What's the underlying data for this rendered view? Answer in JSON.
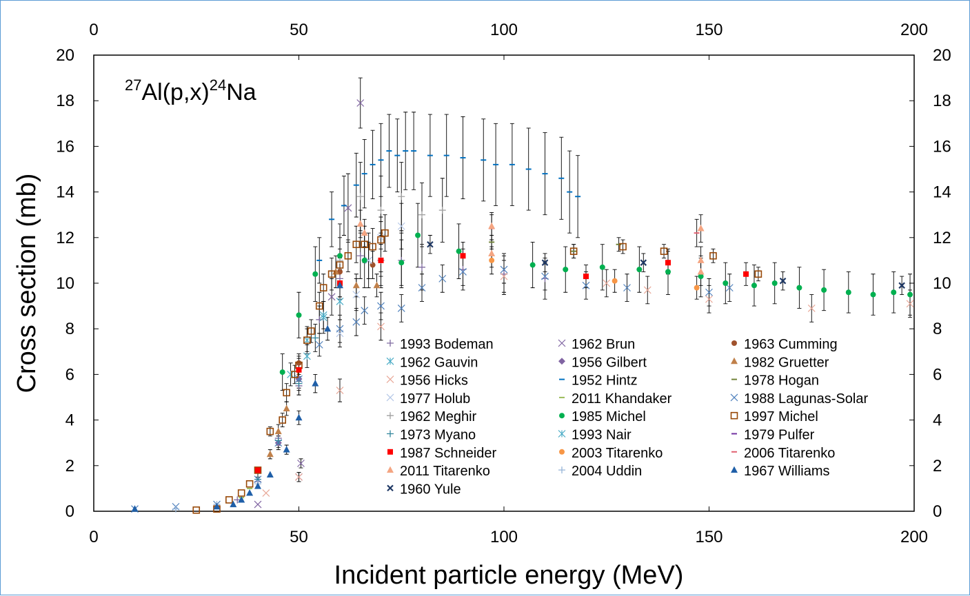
{
  "chart_data": {
    "type": "scatter",
    "annotation": {
      "pre": "27",
      "target": "Al(p,x)",
      "post": "24",
      "product": "Na"
    },
    "xlabel": "Incident particle energy (MeV)",
    "ylabel": "Cross section (mb)",
    "xlim": [
      0,
      200
    ],
    "ylim": [
      0,
      20
    ],
    "x_ticks": [
      "0",
      "50",
      "100",
      "150",
      "200"
    ],
    "y_ticks": [
      "0",
      "2",
      "4",
      "6",
      "8",
      "10",
      "12",
      "14",
      "16",
      "18",
      "20"
    ],
    "grid": false,
    "legend_position": "lower-right inside plot",
    "series": [
      {
        "name": "1993 Bodeman",
        "marker": "plus",
        "color": "#7f6aa0",
        "points": [
          [
            35,
            0.5,
            0.05
          ],
          [
            40,
            1.3,
            0.1
          ],
          [
            45,
            3.2,
            0.2
          ],
          [
            50,
            5.5,
            0.4
          ],
          [
            55,
            8.4,
            0.6
          ],
          [
            60,
            10.2,
            0.8
          ],
          [
            65,
            11.2,
            1.0
          ],
          [
            70,
            11.0,
            1.2
          ],
          [
            75,
            11.0,
            1.2
          ],
          [
            80,
            10.7,
            1.0
          ],
          [
            90,
            10.6,
            0.9
          ],
          [
            100,
            10.4,
            0.9
          ],
          [
            110,
            10.2,
            0.9
          ]
        ]
      },
      {
        "name": "1962 Brun",
        "marker": "x",
        "color": "#8064a2",
        "points": [
          [
            40,
            0.3,
            0.1
          ],
          [
            50,
            1.5,
            0.2
          ],
          [
            50.5,
            2.1,
            0.2
          ],
          [
            58,
            9.4,
            0.8
          ],
          [
            62,
            13.3,
            1.5
          ],
          [
            65,
            17.9,
            1.1
          ],
          [
            67,
            11.0,
            1.2
          ]
        ]
      },
      {
        "name": "1963 Cumming",
        "marker": "circle",
        "color": "#a0522d",
        "points": [
          [
            50,
            6.5,
            0.4
          ],
          [
            60,
            10.5,
            0.6
          ],
          [
            68,
            10.8,
            0.6
          ]
        ]
      },
      {
        "name": "1962 Gauvin",
        "marker": "asterisk",
        "color": "#4bacc6",
        "points": [
          [
            48,
            6.0,
            0.5
          ],
          [
            52,
            7.5,
            0.6
          ],
          [
            56,
            8.5,
            0.7
          ],
          [
            60,
            9.2,
            0.8
          ]
        ]
      },
      {
        "name": "1956 Gilbert",
        "marker": "diamond",
        "color": "#8064a2",
        "points": [
          [
            45,
            3.0,
            0.3
          ],
          [
            50,
            5.8,
            0.5
          ]
        ]
      },
      {
        "name": "1982 Gruetter",
        "marker": "triangle",
        "color": "#c0804a",
        "points": [
          [
            43,
            2.5,
            0.2
          ],
          [
            45,
            3.5,
            0.3
          ],
          [
            47,
            4.5,
            0.3
          ],
          [
            59,
            10.5,
            0.7
          ],
          [
            64,
            9.9,
            0.5
          ],
          [
            69,
            9.9,
            0.5
          ]
        ]
      },
      {
        "name": "1956 Hicks",
        "marker": "x",
        "color": "#e8a898",
        "points": [
          [
            42,
            0.8,
            0.1
          ],
          [
            50,
            1.5,
            0.2
          ],
          [
            60,
            5.3,
            0.5
          ],
          [
            70,
            8.1,
            0.6
          ],
          [
            100,
            10.3,
            0.7
          ],
          [
            125,
            10.0,
            0.6
          ],
          [
            135,
            9.7,
            0.6
          ],
          [
            150,
            9.3,
            0.6
          ],
          [
            175,
            8.9,
            0.6
          ],
          [
            199,
            9.1,
            0.6
          ]
        ]
      },
      {
        "name": "1952 Hintz",
        "marker": "dash",
        "color": "#0070c0",
        "points": [
          [
            55,
            11.0,
            1.0
          ],
          [
            58,
            12.8,
            1.2
          ],
          [
            61,
            13.4,
            1.3
          ],
          [
            64,
            14.3,
            1.4
          ],
          [
            66,
            14.8,
            1.5
          ],
          [
            68,
            15.2,
            1.5
          ],
          [
            70,
            15.4,
            1.6
          ],
          [
            72,
            15.8,
            1.6
          ],
          [
            74,
            15.6,
            1.6
          ],
          [
            76,
            15.8,
            1.7
          ],
          [
            78,
            15.8,
            1.7
          ],
          [
            82,
            15.6,
            1.8
          ],
          [
            86,
            15.6,
            1.8
          ],
          [
            90,
            15.5,
            1.8
          ],
          [
            95,
            15.4,
            1.8
          ],
          [
            98,
            15.2,
            1.8
          ],
          [
            102,
            15.2,
            1.8
          ],
          [
            106,
            15.0,
            1.8
          ],
          [
            110,
            14.8,
            1.8
          ],
          [
            114,
            14.6,
            1.8
          ],
          [
            116,
            14.0,
            1.8
          ],
          [
            118,
            13.8,
            1.8
          ]
        ]
      },
      {
        "name": "1978 Hogan",
        "marker": "dash",
        "color": "#708238",
        "points": [
          [
            97,
            11.8,
            0.3
          ],
          [
            117,
            11.4,
            0.3
          ],
          [
            128,
            11.7,
            0.3
          ]
        ]
      },
      {
        "name": "1977 Holub",
        "marker": "x",
        "color": "#b4c7e7",
        "points": [
          [
            60,
            7.8,
            0.6
          ],
          [
            64,
            9.5,
            0.7
          ],
          [
            67,
            11.0,
            0.8
          ],
          [
            70,
            12.0,
            0.9
          ],
          [
            75,
            12.5,
            1.0
          ]
        ]
      },
      {
        "name": "2011 Khandaker",
        "marker": "dash",
        "color": "#9bbb59",
        "points": [
          [
            36,
            0.6,
            0.1
          ],
          [
            38,
            1.0,
            0.1
          ],
          [
            40,
            1.7,
            0.2
          ]
        ]
      },
      {
        "name": "1988 Lagunas-Solar",
        "marker": "x",
        "color": "#4f81bd",
        "points": [
          [
            10,
            0.1,
            0.05
          ],
          [
            20,
            0.2,
            0.05
          ],
          [
            30,
            0.3,
            0.05
          ],
          [
            40,
            1.4,
            0.1
          ],
          [
            45,
            3.0,
            0.2
          ],
          [
            50,
            5.8,
            0.4
          ],
          [
            55,
            7.3,
            0.5
          ],
          [
            60,
            8.0,
            0.6
          ],
          [
            64,
            8.3,
            0.6
          ],
          [
            66,
            8.8,
            0.6
          ],
          [
            70,
            9.0,
            0.6
          ],
          [
            75,
            8.9,
            0.6
          ],
          [
            80,
            9.8,
            0.6
          ],
          [
            85,
            10.2,
            0.6
          ],
          [
            90,
            10.5,
            0.6
          ],
          [
            100,
            10.6,
            0.6
          ],
          [
            110,
            10.3,
            0.6
          ],
          [
            120,
            9.9,
            0.6
          ],
          [
            130,
            9.8,
            0.6
          ],
          [
            150,
            9.6,
            0.6
          ],
          [
            155,
            9.8,
            0.6
          ]
        ]
      },
      {
        "name": "1962 Meghir",
        "marker": "plus",
        "color": "#a0a0a0",
        "points": [
          [
            60,
            11.0,
            1.0
          ],
          [
            65,
            13.8,
            1.5
          ],
          [
            70,
            13.2,
            1.5
          ],
          [
            75,
            13.8,
            1.5
          ],
          [
            80,
            13.0,
            1.4
          ],
          [
            85,
            13.2,
            1.4
          ]
        ]
      },
      {
        "name": "1985 Michel",
        "marker": "circle",
        "color": "#00b050",
        "points": [
          [
            46,
            6.1,
            0.8
          ],
          [
            50,
            8.6,
            1.0
          ],
          [
            54,
            10.4,
            1.2
          ],
          [
            60,
            11.2,
            1.4
          ],
          [
            66,
            11.0,
            1.2
          ],
          [
            70,
            11.0,
            1.1
          ],
          [
            75,
            10.9,
            1.0
          ],
          [
            79,
            12.1,
            1.4
          ],
          [
            89,
            11.4,
            1.2
          ],
          [
            107,
            10.8,
            1.0
          ],
          [
            115,
            10.6,
            1.0
          ],
          [
            124,
            10.7,
            1.0
          ],
          [
            133,
            10.6,
            1.0
          ],
          [
            140,
            10.5,
            1.0
          ],
          [
            148,
            10.3,
            0.9
          ],
          [
            154,
            10.0,
            0.9
          ],
          [
            161,
            9.9,
            0.9
          ],
          [
            166,
            10.0,
            0.9
          ],
          [
            172,
            9.8,
            0.9
          ],
          [
            178,
            9.7,
            0.9
          ],
          [
            184,
            9.6,
            0.9
          ],
          [
            190,
            9.5,
            0.9
          ],
          [
            195,
            9.6,
            0.9
          ],
          [
            199,
            9.5,
            0.9
          ]
        ]
      },
      {
        "name": "1997 Michel",
        "marker": "square-open",
        "color": "#984807",
        "points": [
          [
            25,
            0.05,
            0.05
          ],
          [
            30,
            0.1,
            0.05
          ],
          [
            33,
            0.5,
            0.05
          ],
          [
            36,
            0.8,
            0.1
          ],
          [
            38,
            1.2,
            0.1
          ],
          [
            40,
            1.8,
            0.1
          ],
          [
            43,
            3.5,
            0.2
          ],
          [
            46,
            4.0,
            0.3
          ],
          [
            47,
            5.2,
            0.4
          ],
          [
            49,
            6.0,
            0.4
          ],
          [
            50,
            6.4,
            0.4
          ],
          [
            52,
            7.5,
            0.5
          ],
          [
            53,
            7.9,
            0.5
          ],
          [
            55,
            9.0,
            0.6
          ],
          [
            56,
            9.8,
            0.6
          ],
          [
            58,
            10.4,
            0.7
          ],
          [
            60,
            10.8,
            0.7
          ],
          [
            62,
            11.2,
            0.7
          ],
          [
            64,
            11.7,
            0.8
          ],
          [
            66,
            11.7,
            0.8
          ],
          [
            68,
            11.6,
            0.8
          ],
          [
            70,
            11.9,
            0.8
          ],
          [
            71,
            12.2,
            0.8
          ],
          [
            117,
            11.4,
            0.3
          ],
          [
            129,
            11.6,
            0.3
          ],
          [
            139,
            11.4,
            0.3
          ],
          [
            151,
            11.2,
            0.3
          ],
          [
            162,
            10.4,
            0.3
          ]
        ]
      },
      {
        "name": "1973 Myano",
        "marker": "plus",
        "color": "#31859c",
        "points": [
          [
            40,
            1.4,
            0.1
          ],
          [
            45,
            3.1,
            0.2
          ],
          [
            50,
            5.6,
            0.5
          ],
          [
            54,
            7.6,
            0.6
          ]
        ]
      },
      {
        "name": "1993 Nair",
        "marker": "asterisk",
        "color": "#4bacc6",
        "points": [
          [
            52,
            6.8,
            0.5
          ],
          [
            56,
            8.6,
            0.6
          ]
        ]
      },
      {
        "name": "1979 Pulfer",
        "marker": "dash",
        "color": "#7030a0",
        "points": [
          [
            70,
            11.0,
            0.5
          ]
        ]
      },
      {
        "name": "1987 Schneider",
        "marker": "square",
        "color": "#ff0000",
        "points": [
          [
            40,
            1.8,
            0.1
          ],
          [
            50,
            6.2,
            0.5
          ],
          [
            60,
            10.0,
            0.6
          ],
          [
            70,
            11.0,
            0.7
          ],
          [
            90,
            11.2,
            0.6
          ],
          [
            120,
            10.3,
            0.5
          ],
          [
            140,
            10.9,
            0.5
          ],
          [
            159,
            10.4,
            0.5
          ]
        ]
      },
      {
        "name": "2003 Titarenko",
        "marker": "circle",
        "color": "#f79646",
        "points": [
          [
            97,
            11.0,
            0.6
          ],
          [
            127,
            10.1,
            0.5
          ],
          [
            147,
            9.8,
            0.5
          ]
        ]
      },
      {
        "name": "2006 Titarenko",
        "marker": "dash",
        "color": "#e06070",
        "points": [
          [
            97,
            12.4,
            0.6
          ],
          [
            147,
            12.2,
            0.6
          ]
        ]
      },
      {
        "name": "2011 Titarenko",
        "marker": "triangle",
        "color": "#f4a582",
        "points": [
          [
            65,
            12.6,
            0.6
          ],
          [
            66,
            12.2,
            0.6
          ],
          [
            97,
            12.5,
            0.6
          ],
          [
            97,
            11.3,
            0.6
          ],
          [
            148,
            12.4,
            0.6
          ],
          [
            148,
            11.0,
            0.6
          ],
          [
            148,
            10.5,
            0.6
          ]
        ]
      },
      {
        "name": "2004 Uddin",
        "marker": "plus",
        "color": "#95b3d7",
        "points": [
          [
            20,
            0.1,
            0.05
          ],
          [
            30,
            0.3,
            0.05
          ],
          [
            40,
            1.2,
            0.1
          ]
        ]
      },
      {
        "name": "1967 Williams",
        "marker": "triangle",
        "color": "#1f5fa8",
        "points": [
          [
            10,
            0.1,
            0.02
          ],
          [
            30,
            0.2,
            0.02
          ],
          [
            34,
            0.3,
            0.05
          ],
          [
            36,
            0.5,
            0.05
          ],
          [
            38,
            0.8,
            0.05
          ],
          [
            40,
            1.1,
            0.1
          ],
          [
            43,
            1.6,
            0.1
          ],
          [
            47,
            2.7,
            0.2
          ],
          [
            50,
            4.1,
            0.3
          ],
          [
            54,
            5.6,
            0.4
          ],
          [
            57,
            8.0,
            0.5
          ],
          [
            60,
            9.9,
            0.6
          ]
        ]
      },
      {
        "name": "1960 Yule",
        "marker": "x-bold",
        "color": "#1f3864",
        "points": [
          [
            82,
            11.7,
            0.4
          ],
          [
            110,
            10.9,
            0.4
          ],
          [
            134,
            10.9,
            0.4
          ],
          [
            168,
            10.1,
            0.4
          ],
          [
            197,
            9.9,
            0.4
          ]
        ]
      }
    ]
  }
}
